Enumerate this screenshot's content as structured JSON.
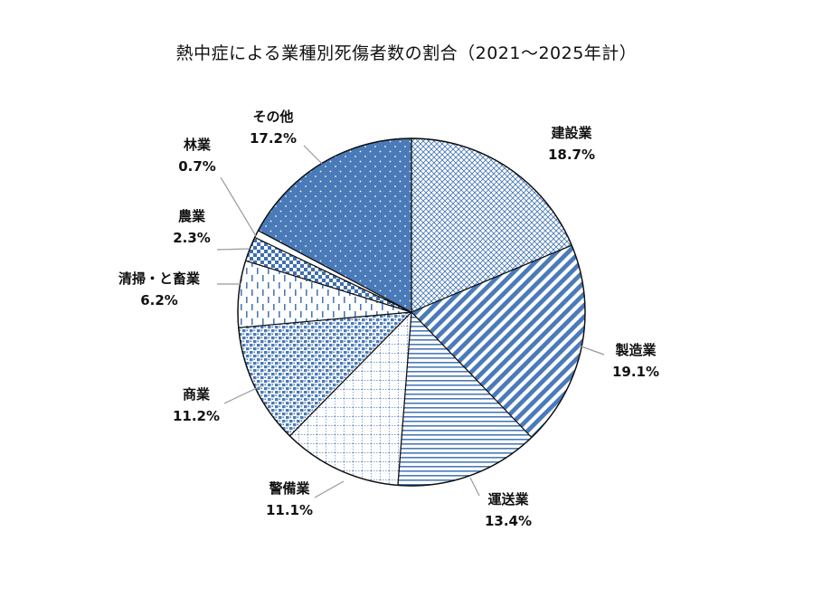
{
  "chart_data": {
    "type": "pie",
    "title": "熱中症による業種別死傷者数の割合（2021～2025年計）",
    "start_angle": "12 o'clock, clockwise",
    "colors": {
      "main": "#4a7ab8",
      "dark": "#3f6fae",
      "border": "#111111",
      "leader": "#999999"
    },
    "slices": [
      {
        "label": "建設業",
        "value": 18.7,
        "value_label": "18.7%",
        "pattern": "crosshatch"
      },
      {
        "label": "製造業",
        "value": 19.1,
        "value_label": "19.1%",
        "pattern": "diagonal-stripes"
      },
      {
        "label": "運送業",
        "value": 13.4,
        "value_label": "13.4%",
        "pattern": "horizontal-lines"
      },
      {
        "label": "警備業",
        "value": 11.1,
        "value_label": "11.1%",
        "pattern": "dotted-grid"
      },
      {
        "label": "商業",
        "value": 11.2,
        "value_label": "11.2%",
        "pattern": "small-dashes"
      },
      {
        "label": "清掃・と畜業",
        "value": 6.2,
        "value_label": "6.2%",
        "pattern": "vertical-dashes"
      },
      {
        "label": "農業",
        "value": 2.3,
        "value_label": "2.3%",
        "pattern": "checkerboard"
      },
      {
        "label": "林業",
        "value": 0.7,
        "value_label": "0.7%",
        "pattern": "white"
      },
      {
        "label": "その他",
        "value": 17.2,
        "value_label": "17.2%",
        "pattern": "solid-dots"
      }
    ]
  }
}
